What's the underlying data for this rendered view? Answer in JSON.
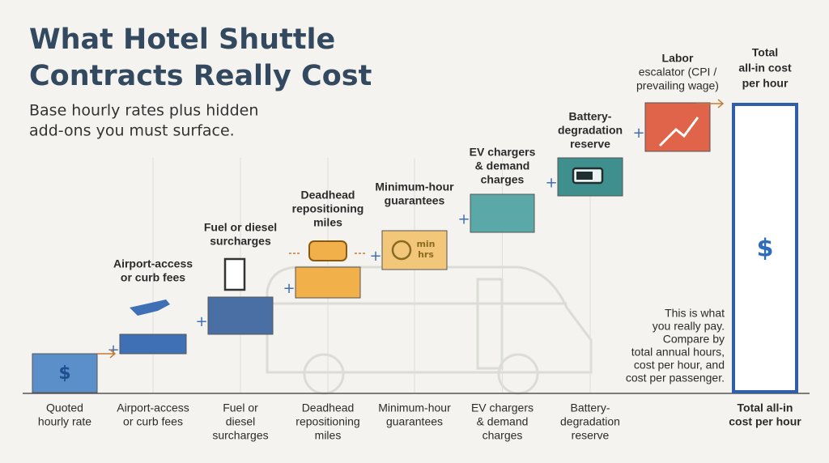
{
  "header": {
    "title_lines": [
      "What Hotel Shuttle",
      "Contracts Really Cost"
    ],
    "subtitle_lines": [
      "Base hourly rates plus hidden",
      "add-ons you must surface."
    ]
  },
  "steps": [
    {
      "top": [],
      "bottom": [
        "Quoted",
        "hourly rate"
      ]
    },
    {
      "top": [
        "Airport-access",
        "or curb fees"
      ],
      "bottom": [
        "Airport-access",
        "or curb fees"
      ]
    },
    {
      "top": [
        "Fuel or diesel",
        "surcharges"
      ],
      "bottom": [
        "Fuel or",
        "diesel",
        "surcharges"
      ]
    },
    {
      "top": [
        "Deadhead",
        "repositioning",
        "miles"
      ],
      "bottom": [
        "Deadhead",
        "repositioning",
        "miles"
      ]
    },
    {
      "top": [
        "Minimum-hour",
        "guarantees"
      ],
      "bottom": [
        "Minimum-hour",
        "guarantees"
      ],
      "icon_text": [
        "min",
        "hrs"
      ]
    },
    {
      "top": [
        "EV chargers",
        "& demand",
        "charges"
      ],
      "bottom": [
        "EV chargers",
        "& demand",
        "charges"
      ]
    },
    {
      "top": [
        "Battery-",
        "degradation",
        "reserve"
      ],
      "bottom": [
        "Battery-",
        "degradation",
        "reserve"
      ]
    },
    {
      "top": [
        "Labor",
        "escalator (CPI /",
        "prevailing wage)"
      ],
      "bottom": []
    }
  ],
  "total": {
    "top": [
      "Total",
      "all-in cost",
      "per hour"
    ],
    "bottom": [
      "Total all-in",
      "cost per hour"
    ]
  },
  "note": [
    "This is what",
    "you really pay.",
    "Compare by",
    "total annual hours,",
    "cost per hour, and",
    "cost per passenger."
  ]
}
